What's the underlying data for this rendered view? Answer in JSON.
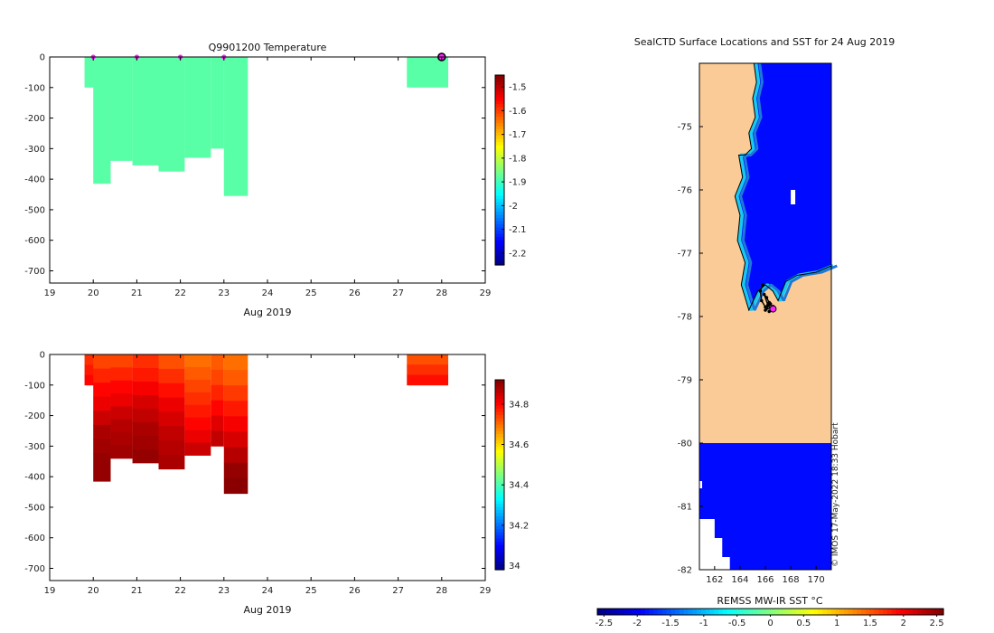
{
  "figure": {
    "credit": "© IMOS 17-May-2022 18:33 Hobart"
  },
  "chart_data": [
    {
      "type": "heatmap",
      "id": "temperature",
      "title": "Q9901200  Temperature",
      "xlabel": "Aug 2019",
      "ylabel": "",
      "xlim": [
        19,
        29
      ],
      "ylim": [
        -740,
        0
      ],
      "xticks": [
        "19",
        "20",
        "21",
        "22",
        "23",
        "24",
        "25",
        "26",
        "27",
        "28",
        "29"
      ],
      "xtick_values": [
        19,
        20,
        21,
        22,
        23,
        24,
        25,
        26,
        27,
        28,
        29
      ],
      "yticks": [
        "0",
        "-100",
        "-200",
        "-300",
        "-400",
        "-500",
        "-600",
        "-700"
      ],
      "ytick_values": [
        0,
        -100,
        -200,
        -300,
        -400,
        -500,
        -600,
        -700
      ],
      "colorbar": {
        "cmin": -2.25,
        "cmax": -1.45,
        "ticks": [
          "-1.5",
          "-1.6",
          "-1.7",
          "-1.8",
          "-1.9",
          "-2",
          "-2.1",
          "-2.2"
        ],
        "tick_values": [
          -1.5,
          -1.6,
          -1.7,
          -1.8,
          -1.9,
          -2.0,
          -2.1,
          -2.2
        ]
      },
      "profiles": [
        {
          "x0": 19.8,
          "x1": 20.4,
          "depth": 100,
          "value": -1.88
        },
        {
          "x0": 20.0,
          "x1": 20.4,
          "depth": 415,
          "value": -1.88
        },
        {
          "x0": 20.4,
          "x1": 20.9,
          "depth": 340,
          "value": -1.88
        },
        {
          "x0": 20.9,
          "x1": 21.5,
          "depth": 355,
          "value": -1.88
        },
        {
          "x0": 21.5,
          "x1": 22.1,
          "depth": 375,
          "value": -1.88
        },
        {
          "x0": 22.1,
          "x1": 22.7,
          "depth": 330,
          "value": -1.88
        },
        {
          "x0": 22.7,
          "x1": 23.0,
          "depth": 300,
          "value": -1.88
        },
        {
          "x0": 23.0,
          "x1": 23.55,
          "depth": 455,
          "value": -1.88
        },
        {
          "x0": 27.2,
          "x1": 28.15,
          "depth": 100,
          "value": -1.88
        }
      ],
      "surface_markers": [
        {
          "x": 20.0,
          "y": 0
        },
        {
          "x": 21.0,
          "y": 0
        },
        {
          "x": 22.0,
          "y": 0
        },
        {
          "x": 23.0,
          "y": 0
        }
      ],
      "current_marker": {
        "x": 28.0,
        "y": 0
      }
    },
    {
      "type": "heatmap",
      "id": "salinity",
      "title": "",
      "xlabel": "Aug 2019",
      "ylabel": "",
      "xlim": [
        19,
        29
      ],
      "ylim": [
        -740,
        0
      ],
      "xticks": [
        "19",
        "20",
        "21",
        "22",
        "23",
        "24",
        "25",
        "26",
        "27",
        "28",
        "29"
      ],
      "xtick_values": [
        19,
        20,
        21,
        22,
        23,
        24,
        25,
        26,
        27,
        28,
        29
      ],
      "yticks": [
        "0",
        "-100",
        "-200",
        "-300",
        "-400",
        "-500",
        "-600",
        "-700"
      ],
      "ytick_values": [
        0,
        -100,
        -200,
        -300,
        -400,
        -500,
        -600,
        -700
      ],
      "colorbar": {
        "cmin": 33.98,
        "cmax": 34.92,
        "ticks": [
          "34.8",
          "34.6",
          "34.4",
          "34.2",
          "34"
        ],
        "tick_values": [
          34.8,
          34.6,
          34.4,
          34.2,
          34.0
        ]
      },
      "profiles": [
        {
          "x0": 19.8,
          "x1": 20.4,
          "depth": 100,
          "layers": [
            34.76,
            34.78,
            34.8
          ]
        },
        {
          "x0": 20.0,
          "x1": 20.4,
          "depth": 415,
          "layers": [
            34.74,
            34.77,
            34.8,
            34.82,
            34.85,
            34.88,
            34.89,
            34.9,
            34.9
          ]
        },
        {
          "x0": 20.4,
          "x1": 20.9,
          "depth": 340,
          "layers": [
            34.74,
            34.77,
            34.8,
            34.82,
            34.85,
            34.87,
            34.88,
            34.89
          ]
        },
        {
          "x0": 20.9,
          "x1": 21.5,
          "depth": 355,
          "layers": [
            34.76,
            34.78,
            34.81,
            34.84,
            34.86,
            34.88,
            34.89,
            34.9
          ]
        },
        {
          "x0": 21.5,
          "x1": 22.1,
          "depth": 375,
          "layers": [
            34.73,
            34.76,
            34.79,
            34.82,
            34.84,
            34.86,
            34.87,
            34.88
          ]
        },
        {
          "x0": 22.1,
          "x1": 22.7,
          "depth": 330,
          "layers": [
            34.7,
            34.72,
            34.74,
            34.76,
            34.78,
            34.8,
            34.82,
            34.85
          ]
        },
        {
          "x0": 22.7,
          "x1": 23.0,
          "depth": 300,
          "layers": [
            34.72,
            34.74,
            34.77,
            34.8,
            34.83,
            34.86
          ]
        },
        {
          "x0": 23.0,
          "x1": 23.55,
          "depth": 455,
          "layers": [
            34.7,
            34.72,
            34.75,
            34.78,
            34.81,
            34.84,
            34.87,
            34.9,
            34.91
          ]
        },
        {
          "x0": 27.2,
          "x1": 28.15,
          "depth": 100,
          "layers": [
            34.73,
            34.76,
            34.79
          ]
        }
      ]
    },
    {
      "type": "heatmap",
      "id": "sst-map",
      "title": "SealCTD Surface Locations and SST for 24 Aug 2019",
      "xlabel": "",
      "ylabel": "",
      "xlim": [
        160.8,
        171.2
      ],
      "ylim": [
        -82,
        -74.0
      ],
      "xticks": [
        "162",
        "164",
        "166",
        "168",
        "170"
      ],
      "xtick_values": [
        162,
        164,
        166,
        168,
        170
      ],
      "yticks": [
        "-75",
        "-76",
        "-77",
        "-78",
        "-79",
        "-80",
        "-81",
        "-82"
      ],
      "ytick_values": [
        -75,
        -76,
        -77,
        -78,
        -79,
        -80,
        -81,
        -82
      ],
      "colorbar": {
        "label": "REMSS MW-IR SST °C",
        "cmin": -2.6,
        "cmax": 2.6,
        "ticks": [
          "-2.5",
          "-2",
          "-1.5",
          "-1",
          "-0.5",
          "0",
          "0.5",
          "1",
          "1.5",
          "2",
          "2.5"
        ],
        "tick_values": [
          -2.5,
          -2.0,
          -1.5,
          -1.0,
          -0.5,
          0,
          0.5,
          1.0,
          1.5,
          2.0,
          2.5
        ]
      },
      "sea_value": -1.9,
      "land_color": "#fbcb97",
      "ice_shelf_lat": -80.0,
      "coast": [
        [
          165.1,
          -74.0
        ],
        [
          165.3,
          -74.3
        ],
        [
          165.0,
          -74.55
        ],
        [
          165.2,
          -74.85
        ],
        [
          164.7,
          -75.1
        ],
        [
          164.9,
          -75.35
        ],
        [
          164.4,
          -75.45
        ],
        [
          163.9,
          -75.45
        ],
        [
          164.2,
          -75.8
        ],
        [
          163.6,
          -76.1
        ],
        [
          164.0,
          -76.4
        ],
        [
          163.8,
          -76.8
        ],
        [
          164.4,
          -77.15
        ],
        [
          164.1,
          -77.5
        ],
        [
          164.7,
          -77.9
        ],
        [
          165.4,
          -77.6
        ],
        [
          166.0,
          -77.5
        ],
        [
          166.6,
          -77.6
        ],
        [
          167.0,
          -77.75
        ],
        [
          167.6,
          -77.45
        ],
        [
          168.5,
          -77.35
        ],
        [
          170.0,
          -77.3
        ],
        [
          171.2,
          -77.2
        ]
      ],
      "track": [
        [
          165.8,
          -77.5
        ],
        [
          165.6,
          -77.6
        ],
        [
          165.7,
          -77.75
        ],
        [
          166.0,
          -77.85
        ],
        [
          166.3,
          -77.78
        ],
        [
          166.1,
          -77.7
        ],
        [
          165.9,
          -77.65
        ],
        [
          166.2,
          -77.82
        ],
        [
          166.5,
          -77.88
        ],
        [
          166.4,
          -77.8
        ],
        [
          166.0,
          -77.9
        ],
        [
          166.6,
          -77.84
        ],
        [
          166.3,
          -77.92
        ],
        [
          166.7,
          -77.86
        ]
      ],
      "current_position": [
        166.6,
        -77.88
      ]
    }
  ]
}
